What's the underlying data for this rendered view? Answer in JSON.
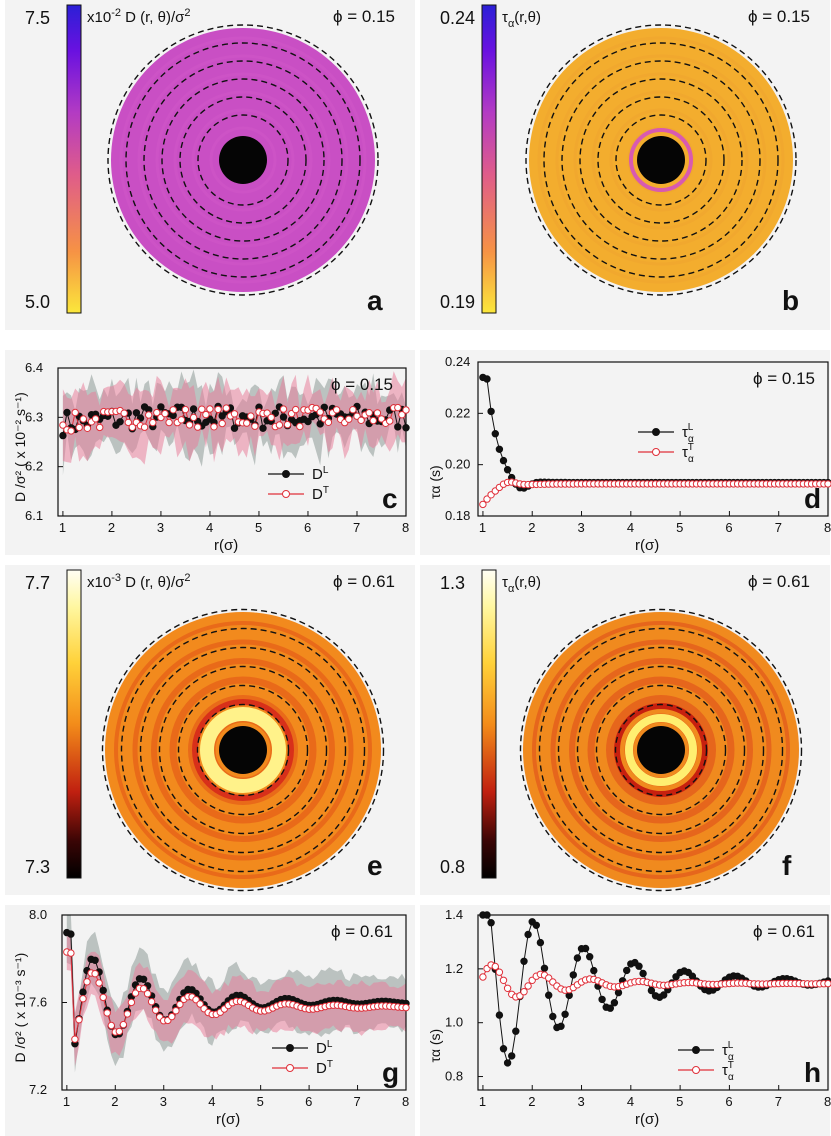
{
  "panels": [
    {
      "id": "a",
      "phi_label": "ϕ = 0.15",
      "cbar_max": "7.5",
      "cbar_min": "5.0",
      "cbar_title": "x10",
      "cbar_exp": "-2",
      "cbar_title_rest": " D (r, θ)/σ",
      "cbar_title_sup": "2",
      "colormap": "plasma_r",
      "ring_color": "#c94fc4",
      "ring_band_color": "#cf55c8"
    },
    {
      "id": "b",
      "phi_label": "ϕ = 0.15",
      "cbar_max": "0.24",
      "cbar_min": "0.19",
      "cbar_title": "τ",
      "cbar_title_sub": "α",
      "cbar_title_rest": "(r,θ)",
      "colormap": "plasma_r",
      "ring_color": "#f3ad2e",
      "ring_band_color": "#f0a52f"
    },
    {
      "id": "e",
      "phi_label": "ϕ = 0.61",
      "cbar_max": "7.7",
      "cbar_min": "7.3",
      "cbar_title": "x10",
      "cbar_exp": "-3",
      "cbar_title_rest": " D (r, θ)/σ",
      "cbar_title_sup": "2",
      "colormap": "hot",
      "ring_color": "#f28a1d",
      "ring_band_color": "#e8661a"
    },
    {
      "id": "f",
      "phi_label": "ϕ = 0.61",
      "cbar_max": "1.3",
      "cbar_min": "0.8",
      "cbar_title": "τ",
      "cbar_title_sub": "α",
      "cbar_title_rest": "(r,θ)",
      "colormap": "hot",
      "ring_color": "#f08a1e",
      "ring_band_color": "#e4621c"
    }
  ],
  "chart_data": [
    {
      "id": "c",
      "type": "line",
      "phi_label": "ϕ = 0.15",
      "xlabel": "r(σ)",
      "ylabel": "D /σ² ( x 10⁻² s⁻¹)",
      "xlim": [
        0.9,
        8.0
      ],
      "ylim": [
        6.1,
        6.4
      ],
      "xticks": [
        "1",
        "2",
        "3",
        "4",
        "5",
        "6",
        "7",
        "8"
      ],
      "yticks": [
        "6.1",
        "6.2",
        "6.3",
        "6.4"
      ],
      "series": [
        {
          "name": "D",
          "name_sup": "L",
          "color": "#111111",
          "style": "filled",
          "base": 6.3,
          "amp": 0.025,
          "noise": 0.025,
          "band": 0.05
        },
        {
          "name": "D",
          "name_sup": "T",
          "color": "#e0303a",
          "style": "open",
          "base": 6.3,
          "amp": 0.02,
          "noise": 0.02,
          "band": 0.045
        }
      ]
    },
    {
      "id": "d",
      "type": "line",
      "phi_label": "ϕ = 0.15",
      "xlabel": "r(σ)",
      "ylabel": "τα (s)",
      "xlim": [
        0.9,
        8.0
      ],
      "ylim": [
        0.18,
        0.24
      ],
      "xticks": [
        "1",
        "2",
        "3",
        "4",
        "5",
        "6",
        "7",
        "8"
      ],
      "yticks": [
        "0.18",
        "0.20",
        "0.22",
        "0.24"
      ],
      "series": [
        {
          "name": "τ",
          "name_sub": "α",
          "name_sup": "L",
          "color": "#111111",
          "style": "filled",
          "plateau": 0.193
        },
        {
          "name": "τ",
          "name_sub": "α",
          "name_sup": "T",
          "color": "#e0303a",
          "style": "open",
          "plateau": 0.1925
        }
      ]
    },
    {
      "id": "g",
      "type": "line",
      "phi_label": "ϕ = 0.61",
      "xlabel": "r(σ)",
      "ylabel": "D /σ² ( x 10⁻³ s⁻¹)",
      "xlim": [
        0.9,
        8.0
      ],
      "ylim": [
        7.2,
        8.0
      ],
      "xticks": [
        "1",
        "2",
        "3",
        "4",
        "5",
        "6",
        "7",
        "8"
      ],
      "yticks": [
        "7.2",
        "7.6",
        "8.0"
      ],
      "series": [
        {
          "name": "D",
          "name_sup": "L",
          "color": "#111111",
          "style": "filled",
          "base": 7.6,
          "amp": 0.28,
          "band": 0.12
        },
        {
          "name": "D",
          "name_sup": "T",
          "color": "#e0303a",
          "style": "open",
          "base": 7.58,
          "amp": 0.22,
          "band": 0.1
        }
      ]
    },
    {
      "id": "h",
      "type": "line",
      "phi_label": "ϕ = 0.61",
      "xlabel": "r(σ)",
      "ylabel": "τα (s)",
      "xlim": [
        0.9,
        8.0
      ],
      "ylim": [
        0.75,
        1.4
      ],
      "xticks": [
        "1",
        "2",
        "3",
        "4",
        "5",
        "6",
        "7",
        "8"
      ],
      "yticks": [
        "0.8",
        "1.0",
        "1.2",
        "1.4"
      ],
      "series": [
        {
          "name": "τ",
          "name_sub": "α",
          "name_sup": "L",
          "color": "#111111",
          "style": "filled",
          "plateau": 1.15,
          "amp": 0.4
        },
        {
          "name": "τ",
          "name_sub": "α",
          "name_sup": "T",
          "color": "#e0303a",
          "style": "open",
          "plateau": 1.145,
          "amp": 0.08
        }
      ]
    }
  ],
  "panel_letters": [
    "a",
    "b",
    "c",
    "d",
    "e",
    "f",
    "g",
    "h"
  ]
}
